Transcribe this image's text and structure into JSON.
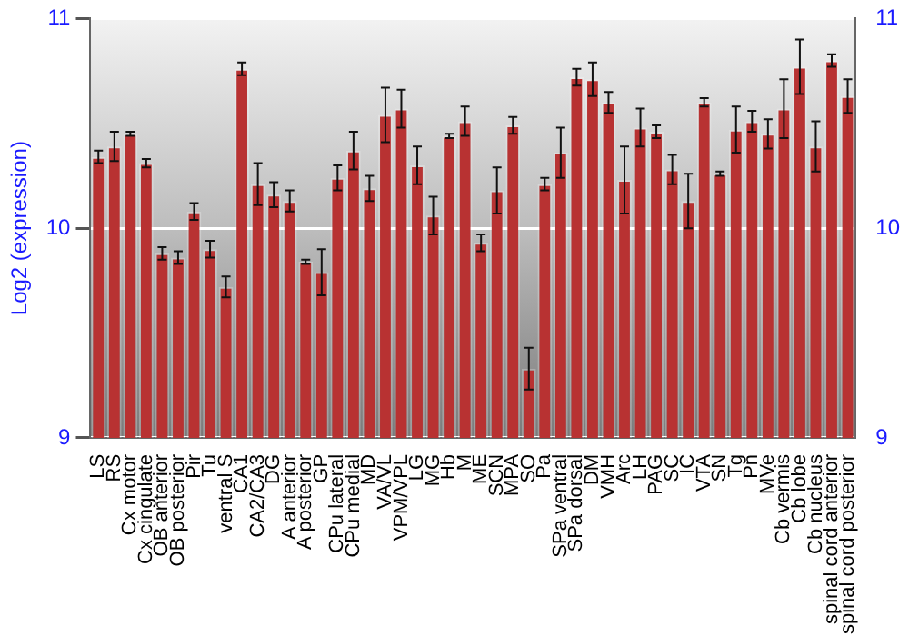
{
  "chart_data": {
    "type": "bar",
    "ylabel": "Log2 (expression)",
    "categories": [
      "LS",
      "RS",
      "Cx motor",
      "Cx cingulate",
      "OB anterior",
      "OB posterior",
      "Pir",
      "Tu",
      "ventral S",
      "CA1",
      "CA2/CA3",
      "DG",
      "A anterior",
      "A posterior",
      "GP",
      "CPu lateral",
      "CPu medial",
      "MD",
      "VA/VL",
      "VPM/VPL",
      "LG",
      "MG",
      "Hb",
      "M",
      "ME",
      "SCN",
      "MPA",
      "SO",
      "Pa",
      "SPa ventral",
      "SPa dorsal",
      "DM",
      "VMH",
      "Arc",
      "LH",
      "PAG",
      "SC",
      "IC",
      "VTA",
      "SN",
      "Tg",
      "Pn",
      "MVe",
      "Cb vermis",
      "Cb lobe",
      "Cb nucleus",
      "spinal cord anterior",
      "spinal cord posterior"
    ],
    "values": [
      10.34,
      10.39,
      10.45,
      10.31,
      9.88,
      9.86,
      10.08,
      9.9,
      9.72,
      10.76,
      10.21,
      10.16,
      10.13,
      9.84,
      9.79,
      10.24,
      10.37,
      10.19,
      10.54,
      10.57,
      10.3,
      10.06,
      10.44,
      10.51,
      9.93,
      10.18,
      10.49,
      9.33,
      10.21,
      10.36,
      10.72,
      10.71,
      10.6,
      10.23,
      10.48,
      10.46,
      10.28,
      10.13,
      10.6,
      10.26,
      10.47,
      10.51,
      10.45,
      10.57,
      10.77,
      10.39,
      10.8,
      10.63
    ],
    "errors": [
      0.03,
      0.07,
      0.01,
      0.02,
      0.03,
      0.03,
      0.04,
      0.04,
      0.05,
      0.03,
      0.1,
      0.06,
      0.05,
      0.01,
      0.11,
      0.06,
      0.09,
      0.06,
      0.13,
      0.09,
      0.09,
      0.09,
      0.01,
      0.07,
      0.04,
      0.11,
      0.04,
      0.1,
      0.03,
      0.12,
      0.04,
      0.08,
      0.05,
      0.16,
      0.09,
      0.03,
      0.07,
      0.13,
      0.02,
      0.01,
      0.11,
      0.05,
      0.07,
      0.14,
      0.13,
      0.12,
      0.03,
      0.08
    ],
    "color": "#b83232",
    "ylim": [
      9,
      11
    ],
    "yticks": [
      9,
      10,
      11
    ],
    "y2lim": [
      9,
      11
    ],
    "y2ticks": [
      9,
      10,
      11
    ],
    "grid": "y",
    "legend": false
  }
}
